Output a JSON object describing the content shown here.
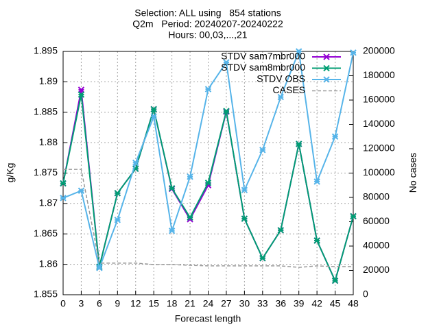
{
  "chart_data": {
    "type": "line",
    "title": [
      "Selection: ALL using   854 stations",
      "Q2m   Period: 20240207-20240222",
      "Hours: 00,03,...,21"
    ],
    "xlabel": "Forecast length",
    "ylabel": "g/Kg",
    "y2label": "No cases",
    "x": [
      0,
      3,
      6,
      9,
      12,
      15,
      18,
      21,
      24,
      27,
      30,
      33,
      36,
      39,
      42,
      45,
      48
    ],
    "xlim": [
      0,
      48
    ],
    "xticks": [
      0,
      3,
      6,
      9,
      12,
      15,
      18,
      21,
      24,
      27,
      30,
      33,
      36,
      39,
      42,
      45,
      48
    ],
    "ylim": [
      1.855,
      1.895
    ],
    "yticks": [
      1.855,
      1.86,
      1.865,
      1.87,
      1.875,
      1.88,
      1.885,
      1.89,
      1.895
    ],
    "y2lim": [
      0,
      200000
    ],
    "y2ticks": [
      0,
      20000,
      40000,
      60000,
      80000,
      100000,
      120000,
      140000,
      160000,
      180000,
      200000
    ],
    "grid": true,
    "legend": "top right",
    "series": [
      {
        "name": "STDV sam7mbr000",
        "color": "#9400d3",
        "marker": true,
        "dashed": false,
        "values": [
          1.8733,
          1.8887,
          1.8596,
          1.8717,
          1.8757,
          1.8855,
          1.8724,
          1.8674,
          1.873,
          1.8851,
          1.8675,
          1.861,
          1.8656,
          1.8798,
          1.8639,
          1.8573,
          1.8679
        ]
      },
      {
        "name": "STDV sam8mbr000",
        "color": "#009e73",
        "marker": true,
        "dashed": false,
        "values": [
          1.8733,
          1.8879,
          1.8596,
          1.8717,
          1.8757,
          1.8855,
          1.8725,
          1.8677,
          1.8734,
          1.8852,
          1.8675,
          1.861,
          1.8656,
          1.8798,
          1.8639,
          1.8573,
          1.8679
        ]
      },
      {
        "name": "STDV OBS",
        "color": "#56b4e9",
        "marker": true,
        "dashed": false,
        "values": [
          1.8709,
          1.8721,
          1.8594,
          1.8673,
          1.8767,
          1.8843,
          1.8655,
          1.8744,
          1.8888,
          1.8932,
          1.8722,
          1.8788,
          1.8875,
          1.895,
          1.8736,
          1.881,
          1.8948
        ]
      },
      {
        "name": "CASES",
        "color": "#999999",
        "marker": false,
        "dashed": true,
        "axis": "y2",
        "values": [
          103000,
          103000,
          26000,
          26000,
          26000,
          24800,
          24800,
          24200,
          23700,
          23700,
          23700,
          23700,
          23700,
          22500,
          23700,
          23100,
          23100
        ]
      }
    ]
  }
}
